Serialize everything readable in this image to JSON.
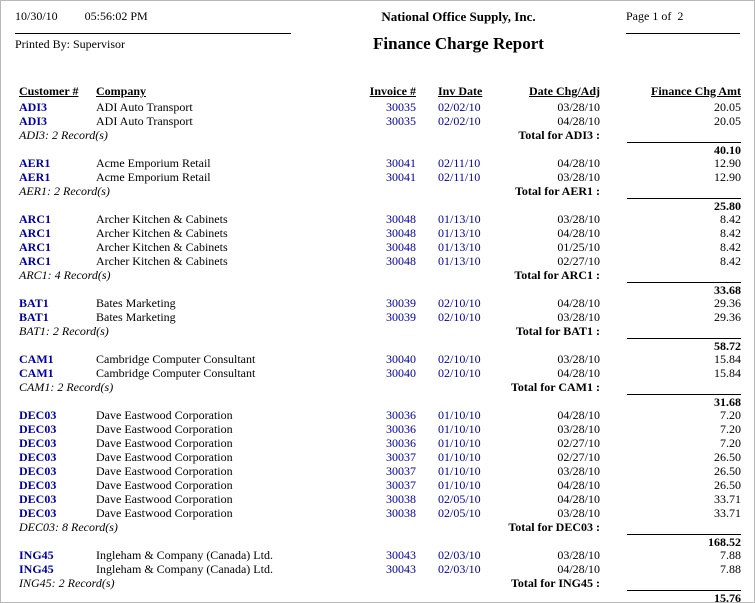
{
  "header": {
    "date": "10/30/10",
    "time": "05:56:02 PM",
    "printed_by": "Printed By: Supervisor",
    "company_name": "National Office Supply, Inc.",
    "report_title": "Finance Charge Report",
    "page_label": "Page 1 of  2"
  },
  "columns": {
    "customer": "Customer #",
    "company": "Company",
    "invoice": "Invoice #",
    "inv_date": "Inv Date",
    "date_chg": "Date Chg/Adj",
    "amount": "Finance Chg Amt"
  },
  "colors": {
    "link_blue": "#0000A0",
    "text": "#000000"
  },
  "groups": [
    {
      "customer": "ADI3",
      "rows": [
        {
          "customer": "ADI3",
          "company": "ADI Auto Transport",
          "invoice": "30035",
          "inv_date": "02/02/10",
          "date_chg": "03/28/10",
          "amount": "20.05"
        },
        {
          "customer": "ADI3",
          "company": "ADI Auto Transport",
          "invoice": "30035",
          "inv_date": "02/02/10",
          "date_chg": "04/28/10",
          "amount": "20.05"
        }
      ],
      "record_count": "ADI3: 2 Record(s)",
      "total_label": "Total for ADI3 :",
      "total_amount": "40.10"
    },
    {
      "customer": "AER1",
      "rows": [
        {
          "customer": "AER1",
          "company": "Acme Emporium Retail",
          "invoice": "30041",
          "inv_date": "02/11/10",
          "date_chg": "04/28/10",
          "amount": "12.90"
        },
        {
          "customer": "AER1",
          "company": "Acme Emporium Retail",
          "invoice": "30041",
          "inv_date": "02/11/10",
          "date_chg": "03/28/10",
          "amount": "12.90"
        }
      ],
      "record_count": "AER1: 2 Record(s)",
      "total_label": "Total for AER1 :",
      "total_amount": "25.80"
    },
    {
      "customer": "ARC1",
      "rows": [
        {
          "customer": "ARC1",
          "company": "Archer Kitchen & Cabinets",
          "invoice": "30048",
          "inv_date": "01/13/10",
          "date_chg": "03/28/10",
          "amount": "8.42"
        },
        {
          "customer": "ARC1",
          "company": "Archer Kitchen & Cabinets",
          "invoice": "30048",
          "inv_date": "01/13/10",
          "date_chg": "04/28/10",
          "amount": "8.42"
        },
        {
          "customer": "ARC1",
          "company": "Archer Kitchen & Cabinets",
          "invoice": "30048",
          "inv_date": "01/13/10",
          "date_chg": "01/25/10",
          "amount": "8.42"
        },
        {
          "customer": "ARC1",
          "company": "Archer Kitchen & Cabinets",
          "invoice": "30048",
          "inv_date": "01/13/10",
          "date_chg": "02/27/10",
          "amount": "8.42"
        }
      ],
      "record_count": "ARC1: 4 Record(s)",
      "total_label": "Total for ARC1 :",
      "total_amount": "33.68"
    },
    {
      "customer": "BAT1",
      "rows": [
        {
          "customer": "BAT1",
          "company": "Bates Marketing",
          "invoice": "30039",
          "inv_date": "02/10/10",
          "date_chg": "04/28/10",
          "amount": "29.36"
        },
        {
          "customer": "BAT1",
          "company": "Bates Marketing",
          "invoice": "30039",
          "inv_date": "02/10/10",
          "date_chg": "03/28/10",
          "amount": "29.36"
        }
      ],
      "record_count": "BAT1: 2 Record(s)",
      "total_label": "Total for BAT1 :",
      "total_amount": "58.72"
    },
    {
      "customer": "CAM1",
      "rows": [
        {
          "customer": "CAM1",
          "company": "Cambridge Computer Consultant",
          "invoice": "30040",
          "inv_date": "02/10/10",
          "date_chg": "03/28/10",
          "amount": "15.84"
        },
        {
          "customer": "CAM1",
          "company": "Cambridge Computer Consultant",
          "invoice": "30040",
          "inv_date": "02/10/10",
          "date_chg": "04/28/10",
          "amount": "15.84"
        }
      ],
      "record_count": "CAM1: 2 Record(s)",
      "total_label": "Total for CAM1 :",
      "total_amount": "31.68"
    },
    {
      "customer": "DEC03",
      "rows": [
        {
          "customer": "DEC03",
          "company": "Dave Eastwood Corporation",
          "invoice": "30036",
          "inv_date": "01/10/10",
          "date_chg": "04/28/10",
          "amount": "7.20"
        },
        {
          "customer": "DEC03",
          "company": "Dave Eastwood Corporation",
          "invoice": "30036",
          "inv_date": "01/10/10",
          "date_chg": "03/28/10",
          "amount": "7.20"
        },
        {
          "customer": "DEC03",
          "company": "Dave Eastwood Corporation",
          "invoice": "30036",
          "inv_date": "01/10/10",
          "date_chg": "02/27/10",
          "amount": "7.20"
        },
        {
          "customer": "DEC03",
          "company": "Dave Eastwood Corporation",
          "invoice": "30037",
          "inv_date": "01/10/10",
          "date_chg": "02/27/10",
          "amount": "26.50"
        },
        {
          "customer": "DEC03",
          "company": "Dave Eastwood Corporation",
          "invoice": "30037",
          "inv_date": "01/10/10",
          "date_chg": "03/28/10",
          "amount": "26.50"
        },
        {
          "customer": "DEC03",
          "company": "Dave Eastwood Corporation",
          "invoice": "30037",
          "inv_date": "01/10/10",
          "date_chg": "04/28/10",
          "amount": "26.50"
        },
        {
          "customer": "DEC03",
          "company": "Dave Eastwood Corporation",
          "invoice": "30038",
          "inv_date": "02/05/10",
          "date_chg": "04/28/10",
          "amount": "33.71"
        },
        {
          "customer": "DEC03",
          "company": "Dave Eastwood Corporation",
          "invoice": "30038",
          "inv_date": "02/05/10",
          "date_chg": "03/28/10",
          "amount": "33.71"
        }
      ],
      "record_count": "DEC03: 8 Record(s)",
      "total_label": "Total for DEC03 :",
      "total_amount": "168.52"
    },
    {
      "customer": "ING45",
      "rows": [
        {
          "customer": "ING45",
          "company": "Ingleham & Company (Canada) Ltd.",
          "invoice": "30043",
          "inv_date": "02/03/10",
          "date_chg": "03/28/10",
          "amount": "7.88"
        },
        {
          "customer": "ING45",
          "company": "Ingleham & Company (Canada) Ltd.",
          "invoice": "30043",
          "inv_date": "02/03/10",
          "date_chg": "04/28/10",
          "amount": "7.88"
        }
      ],
      "record_count": "ING45: 2 Record(s)",
      "total_label": "Total for ING45 :",
      "total_amount": "15.76"
    }
  ]
}
